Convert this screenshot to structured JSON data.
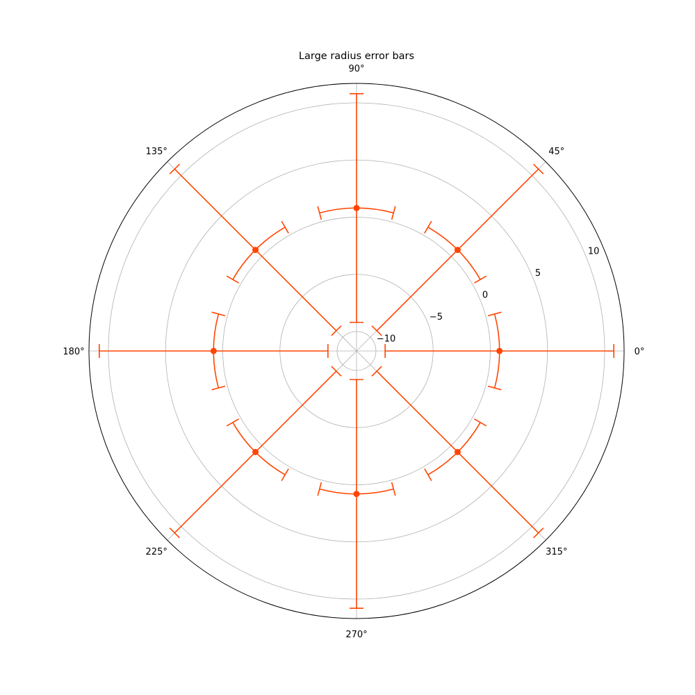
{
  "chart_data": {
    "type": "polar-errorbar",
    "title": "Large radius error bars",
    "rlim": [
      -11.7,
      11.7
    ],
    "rticks": [
      -10,
      -5,
      0,
      5,
      10
    ],
    "rtick_labels": [
      "−10",
      "−5",
      "0",
      "5",
      "10"
    ],
    "rlabel_angle_deg": 22.5,
    "theta_ticks_deg": [
      0,
      45,
      90,
      135,
      180,
      225,
      270,
      315
    ],
    "theta_tick_labels": [
      "0°",
      "45°",
      "90°",
      "135°",
      "180°",
      "225°",
      "270°",
      "315°"
    ],
    "grid": true,
    "color": "#ff4500",
    "points": [
      {
        "theta_deg": 0,
        "r": 0.8,
        "theta_err_deg": 15,
        "r_err": 10
      },
      {
        "theta_deg": 45,
        "r": 0.8,
        "theta_err_deg": 15,
        "r_err": 10
      },
      {
        "theta_deg": 90,
        "r": 0.8,
        "theta_err_deg": 15,
        "r_err": 10
      },
      {
        "theta_deg": 135,
        "r": 0.8,
        "theta_err_deg": 15,
        "r_err": 10
      },
      {
        "theta_deg": 180,
        "r": 0.8,
        "theta_err_deg": 15,
        "r_err": 10
      },
      {
        "theta_deg": 225,
        "r": 0.8,
        "theta_err_deg": 15,
        "r_err": 10
      },
      {
        "theta_deg": 270,
        "r": 0.8,
        "theta_err_deg": 15,
        "r_err": 10
      },
      {
        "theta_deg": 315,
        "r": 0.8,
        "theta_err_deg": 15,
        "r_err": 10
      }
    ]
  }
}
